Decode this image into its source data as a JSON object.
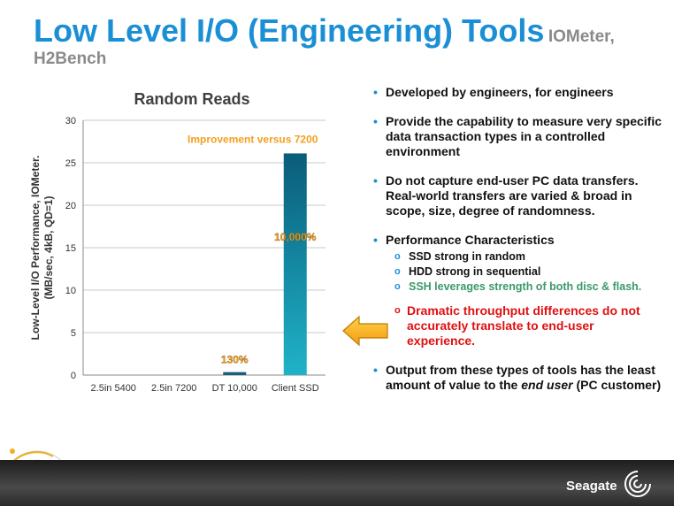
{
  "title": {
    "main": "Low Level I/O (Engineering) Tools",
    "sub_part1": "IOMeter,",
    "sub_part2": "H2Bench"
  },
  "chart_data": {
    "type": "bar",
    "title": "Random Reads",
    "categories": [
      "2.5in 5400",
      "2.5in 7200",
      "DT 10,000",
      "Client SSD"
    ],
    "values": [
      0,
      0,
      0.35,
      26.1
    ],
    "ylabel": "Low-Level I/O Performance, IOMeter. (MB/sec, 4kB, QD=1)",
    "ylim": [
      0,
      30
    ],
    "yticks": [
      0,
      5,
      10,
      15,
      20,
      25,
      30
    ],
    "grid": true,
    "annotations": {
      "improvement": "Improvement versus 7200",
      "ssd_pct": "10,000%",
      "dt_pct": "130%"
    },
    "bar_color": "#1fb3c8",
    "annotation_color": "#f0a020"
  },
  "bullets": {
    "b1": "Developed by engineers, for engineers",
    "b2": "Provide the capability to measure very specific data transaction types in a controlled environment",
    "b3": "Do not capture end-user PC data transfers. Real-world transfers are varied & broad in scope, size, degree of randomness.",
    "b4": "Performance Characteristics",
    "b4_s1": "SSD strong in random",
    "b4_s2": "HDD strong in sequential",
    "b4_s3": "SSH leverages strength of both disc & flash.",
    "red": "Dramatic throughput differences do not accurately translate to end-user experience.",
    "b5_part1": "Output from these types of tools has the least amount of value to the ",
    "b5_em": "end user",
    "b5_part2": " (PC customer)"
  },
  "footer": {
    "brand": "Seagate"
  },
  "icons": {
    "bullet": "bullet-dot-icon",
    "sub_bullet": "circle-bullet-icon",
    "arrow": "arrow-right-icon",
    "logo": "seagate-logo-icon"
  }
}
